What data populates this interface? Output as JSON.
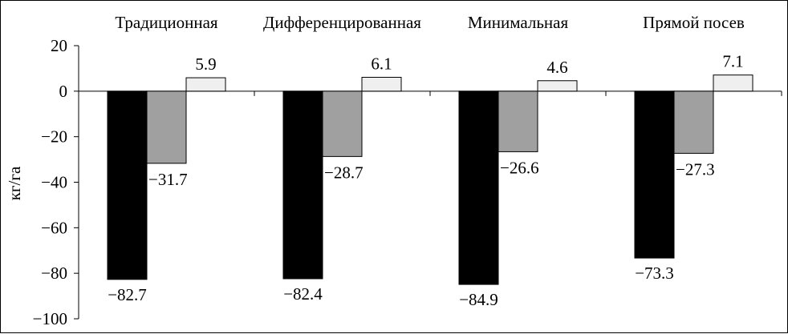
{
  "chart_data": {
    "type": "bar",
    "title": "",
    "xlabel": "",
    "ylabel": "кг/га",
    "ylim": [
      -100,
      20
    ],
    "yticks": [
      20,
      0,
      -20,
      -40,
      -60,
      -80,
      -100
    ],
    "ytick_labels": [
      "20",
      "0",
      "−20",
      "−40",
      "−60",
      "−80",
      "−100"
    ],
    "grid": false,
    "legend": "none",
    "categories": [
      "Традиционная",
      "Дифференцированная",
      "Минимальная",
      "Прямой посев"
    ],
    "series": [
      {
        "color": "#000000",
        "values": [
          -82.7,
          -82.4,
          -84.9,
          -73.3
        ],
        "labels": [
          "−82.7",
          "−82.4",
          "−84.9",
          "−73.3"
        ]
      },
      {
        "color": "#a0a0a0",
        "values": [
          -31.7,
          -28.7,
          -26.6,
          -27.3
        ],
        "labels": [
          "−31.7",
          "−28.7",
          "−26.6",
          "−27.3"
        ]
      },
      {
        "color": "#efefef",
        "values": [
          5.9,
          6.1,
          4.6,
          7.1
        ],
        "labels": [
          "5.9",
          "6.1",
          "4.6",
          "7.1"
        ]
      }
    ]
  }
}
